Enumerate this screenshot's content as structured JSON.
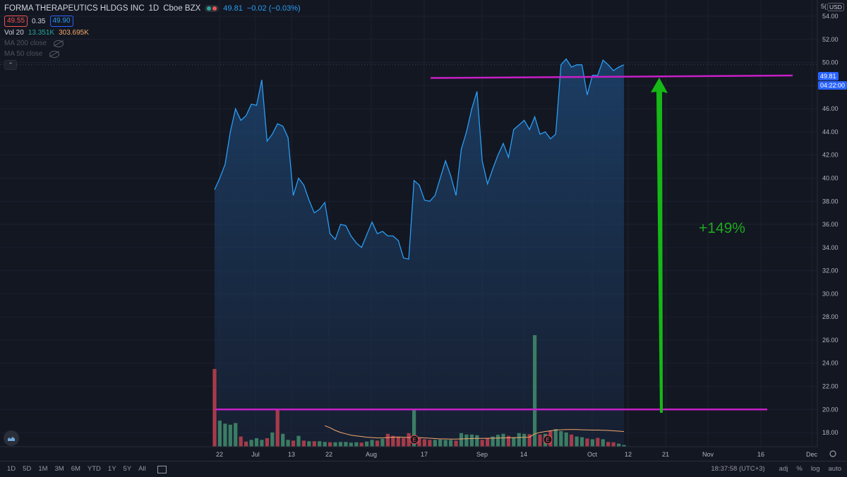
{
  "header": {
    "symbol": "FORMA THERAPEUTICS HLDGS INC",
    "interval": "1D",
    "exchange": "Cboe BZX",
    "last_price": "49.81",
    "change": "−0.02 (−0.03%)",
    "bid": "49.55",
    "spread": "0.35",
    "ask": "49.90",
    "status_colors": [
      "#26a69a",
      "#ef5350"
    ]
  },
  "indicators": {
    "vol_label": "Vol 20",
    "vol_value": "13.351K",
    "vol_ma": "303.695K",
    "ma200": "MA 200 close",
    "ma50": "MA 50 close"
  },
  "price_axis": {
    "currency": "USD",
    "current_price": "49.81",
    "countdown": "04:22:00",
    "partial_top": "5("
  },
  "annotation": {
    "text": "+149%",
    "text_color": "#1ea91e",
    "arrow_color": "#16b816",
    "line_color": "#c71fc7",
    "top_level": 49.6,
    "bottom_level": 20.0
  },
  "bottom_bar": {
    "ranges": [
      "1D",
      "5D",
      "1M",
      "3M",
      "6M",
      "YTD",
      "1Y",
      "5Y",
      "All"
    ],
    "time": "18:37:58 (UTC+3)",
    "options": [
      "adj",
      "%",
      "log",
      "auto"
    ]
  },
  "chart_data": {
    "type": "area",
    "title": "FORMA THERAPEUTICS HLDGS INC",
    "ylim": [
      17,
      56
    ],
    "ticks_y": [
      18,
      20,
      22,
      24,
      26,
      28,
      30,
      32,
      34,
      36,
      38,
      40,
      42,
      44,
      46,
      48,
      50,
      52,
      54
    ],
    "ticks_x": [
      "22",
      "Jul",
      "13",
      "22",
      "Aug",
      "17",
      "Sep",
      "14",
      "Oct",
      "12",
      "21",
      "Nov",
      "16",
      "Dec"
    ],
    "x": [
      "2020-06-19",
      "2020-06-22",
      "2020-06-23",
      "2020-06-24",
      "2020-06-25",
      "2020-06-26",
      "2020-06-29",
      "2020-06-30",
      "2020-07-01",
      "2020-07-02",
      "2020-07-06",
      "2020-07-07",
      "2020-07-08",
      "2020-07-09",
      "2020-07-10",
      "2020-07-13",
      "2020-07-14",
      "2020-07-15",
      "2020-07-16",
      "2020-07-17",
      "2020-07-20",
      "2020-07-21",
      "2020-07-22",
      "2020-07-23",
      "2020-07-24",
      "2020-07-27",
      "2020-07-28",
      "2020-07-29",
      "2020-07-30",
      "2020-07-31",
      "2020-08-03",
      "2020-08-04",
      "2020-08-05",
      "2020-08-06",
      "2020-08-07",
      "2020-08-10",
      "2020-08-11",
      "2020-08-12",
      "2020-08-13",
      "2020-08-14",
      "2020-08-17",
      "2020-08-18",
      "2020-08-19",
      "2020-08-20",
      "2020-08-21",
      "2020-08-24",
      "2020-08-25",
      "2020-08-26",
      "2020-08-27",
      "2020-08-28",
      "2020-08-31",
      "2020-09-01",
      "2020-09-02",
      "2020-09-03",
      "2020-09-04",
      "2020-09-08",
      "2020-09-09",
      "2020-09-10",
      "2020-09-11",
      "2020-09-14",
      "2020-09-15",
      "2020-09-16",
      "2020-09-17",
      "2020-09-18",
      "2020-09-21",
      "2020-09-22",
      "2020-09-23",
      "2020-09-24",
      "2020-09-25",
      "2020-09-28",
      "2020-09-29",
      "2020-09-30",
      "2020-10-01",
      "2020-10-02",
      "2020-10-05",
      "2020-10-06",
      "2020-10-07",
      "2020-10-08",
      "2020-10-09"
    ],
    "series": [
      {
        "type": "line",
        "values": [
          39.0,
          40.0,
          41.2,
          44.0,
          46.0,
          45.0,
          45.4,
          46.4,
          46.3,
          48.5,
          43.2,
          43.8,
          44.7,
          44.5,
          43.5,
          38.5,
          40.0,
          39.4,
          38.1,
          37.0,
          37.3,
          37.9,
          35.2,
          34.7,
          36.0,
          35.9,
          35.0,
          34.4,
          34.0,
          35.1,
          36.2,
          35.2,
          35.4,
          35.0,
          35.0,
          34.6,
          33.1,
          33.0,
          39.8,
          39.4,
          38.1,
          38.0,
          38.5,
          40.0,
          41.5,
          40.2,
          38.5,
          42.5,
          44.0,
          46.0,
          47.5,
          41.5,
          39.5,
          40.8,
          42.0,
          43.0,
          41.8,
          44.2,
          44.6,
          45.0,
          44.2,
          45.3,
          43.8,
          44.0,
          43.4,
          43.8,
          49.8,
          50.3,
          49.6,
          49.8,
          49.8,
          47.2,
          48.9,
          48.9,
          50.2,
          49.8,
          49.3,
          49.6,
          49.8
        ]
      },
      {
        "type": "bar",
        "name": "Vol",
        "values": [
          2300,
          770,
          680,
          650,
          700,
          300,
          150,
          200,
          250,
          200,
          250,
          420,
          1080,
          380,
          200,
          180,
          320,
          180,
          160,
          160,
          160,
          140,
          130,
          130,
          140,
          140,
          120,
          130,
          120,
          150,
          200,
          180,
          230,
          380,
          320,
          300,
          260,
          400,
          1100,
          250,
          220,
          200,
          200,
          210,
          200,
          200,
          180,
          400,
          360,
          360,
          340,
          200,
          250,
          300,
          350,
          380,
          320,
          280,
          400,
          380,
          370,
          3300,
          360,
          380,
          480,
          520,
          460,
          420,
          360,
          300,
          280,
          240,
          220,
          260,
          220,
          140,
          130,
          90,
          50
        ],
        "directions": [
          "down",
          "up",
          "up",
          "up",
          "up",
          "down",
          "down",
          "up",
          "up",
          "up",
          "down",
          "up",
          "down",
          "up",
          "up",
          "down",
          "up",
          "down",
          "up",
          "down",
          "up",
          "up",
          "down",
          "up",
          "up",
          "up",
          "up",
          "up",
          "down",
          "up",
          "up",
          "down",
          "up",
          "down",
          "down",
          "down",
          "down",
          "down",
          "up",
          "down",
          "down",
          "down",
          "up",
          "up",
          "up",
          "up",
          "down",
          "up",
          "up",
          "up",
          "up",
          "down",
          "down",
          "up",
          "up",
          "up",
          "down",
          "up",
          "up",
          "up",
          "down",
          "up",
          "down",
          "up",
          "down",
          "up",
          "up",
          "up",
          "down",
          "up",
          "up",
          "down",
          "up",
          "down",
          "up",
          "down",
          "down",
          "up",
          "up"
        ],
        "ma": [
          null,
          null,
          null,
          null,
          null,
          null,
          null,
          null,
          null,
          null,
          null,
          null,
          null,
          null,
          null,
          null,
          null,
          null,
          null,
          null,
          null,
          620,
          560,
          480,
          420,
          380,
          340,
          320,
          300,
          280,
          270,
          260,
          260,
          270,
          280,
          280,
          280,
          270,
          280,
          270,
          260,
          250,
          240,
          230,
          230,
          225,
          225,
          230,
          235,
          240,
          245,
          245,
          248,
          250,
          255,
          260,
          262,
          265,
          270,
          275,
          280,
          380,
          420,
          450,
          470,
          490,
          500,
          505,
          505,
          505,
          500,
          495,
          490,
          490,
          485,
          480,
          470,
          460,
          450
        ]
      }
    ],
    "colors": {
      "line": "#2a9df4",
      "vol_up": "#3b7d64",
      "vol_down": "#a73b49",
      "vol_ma": "#f5a76a"
    }
  }
}
